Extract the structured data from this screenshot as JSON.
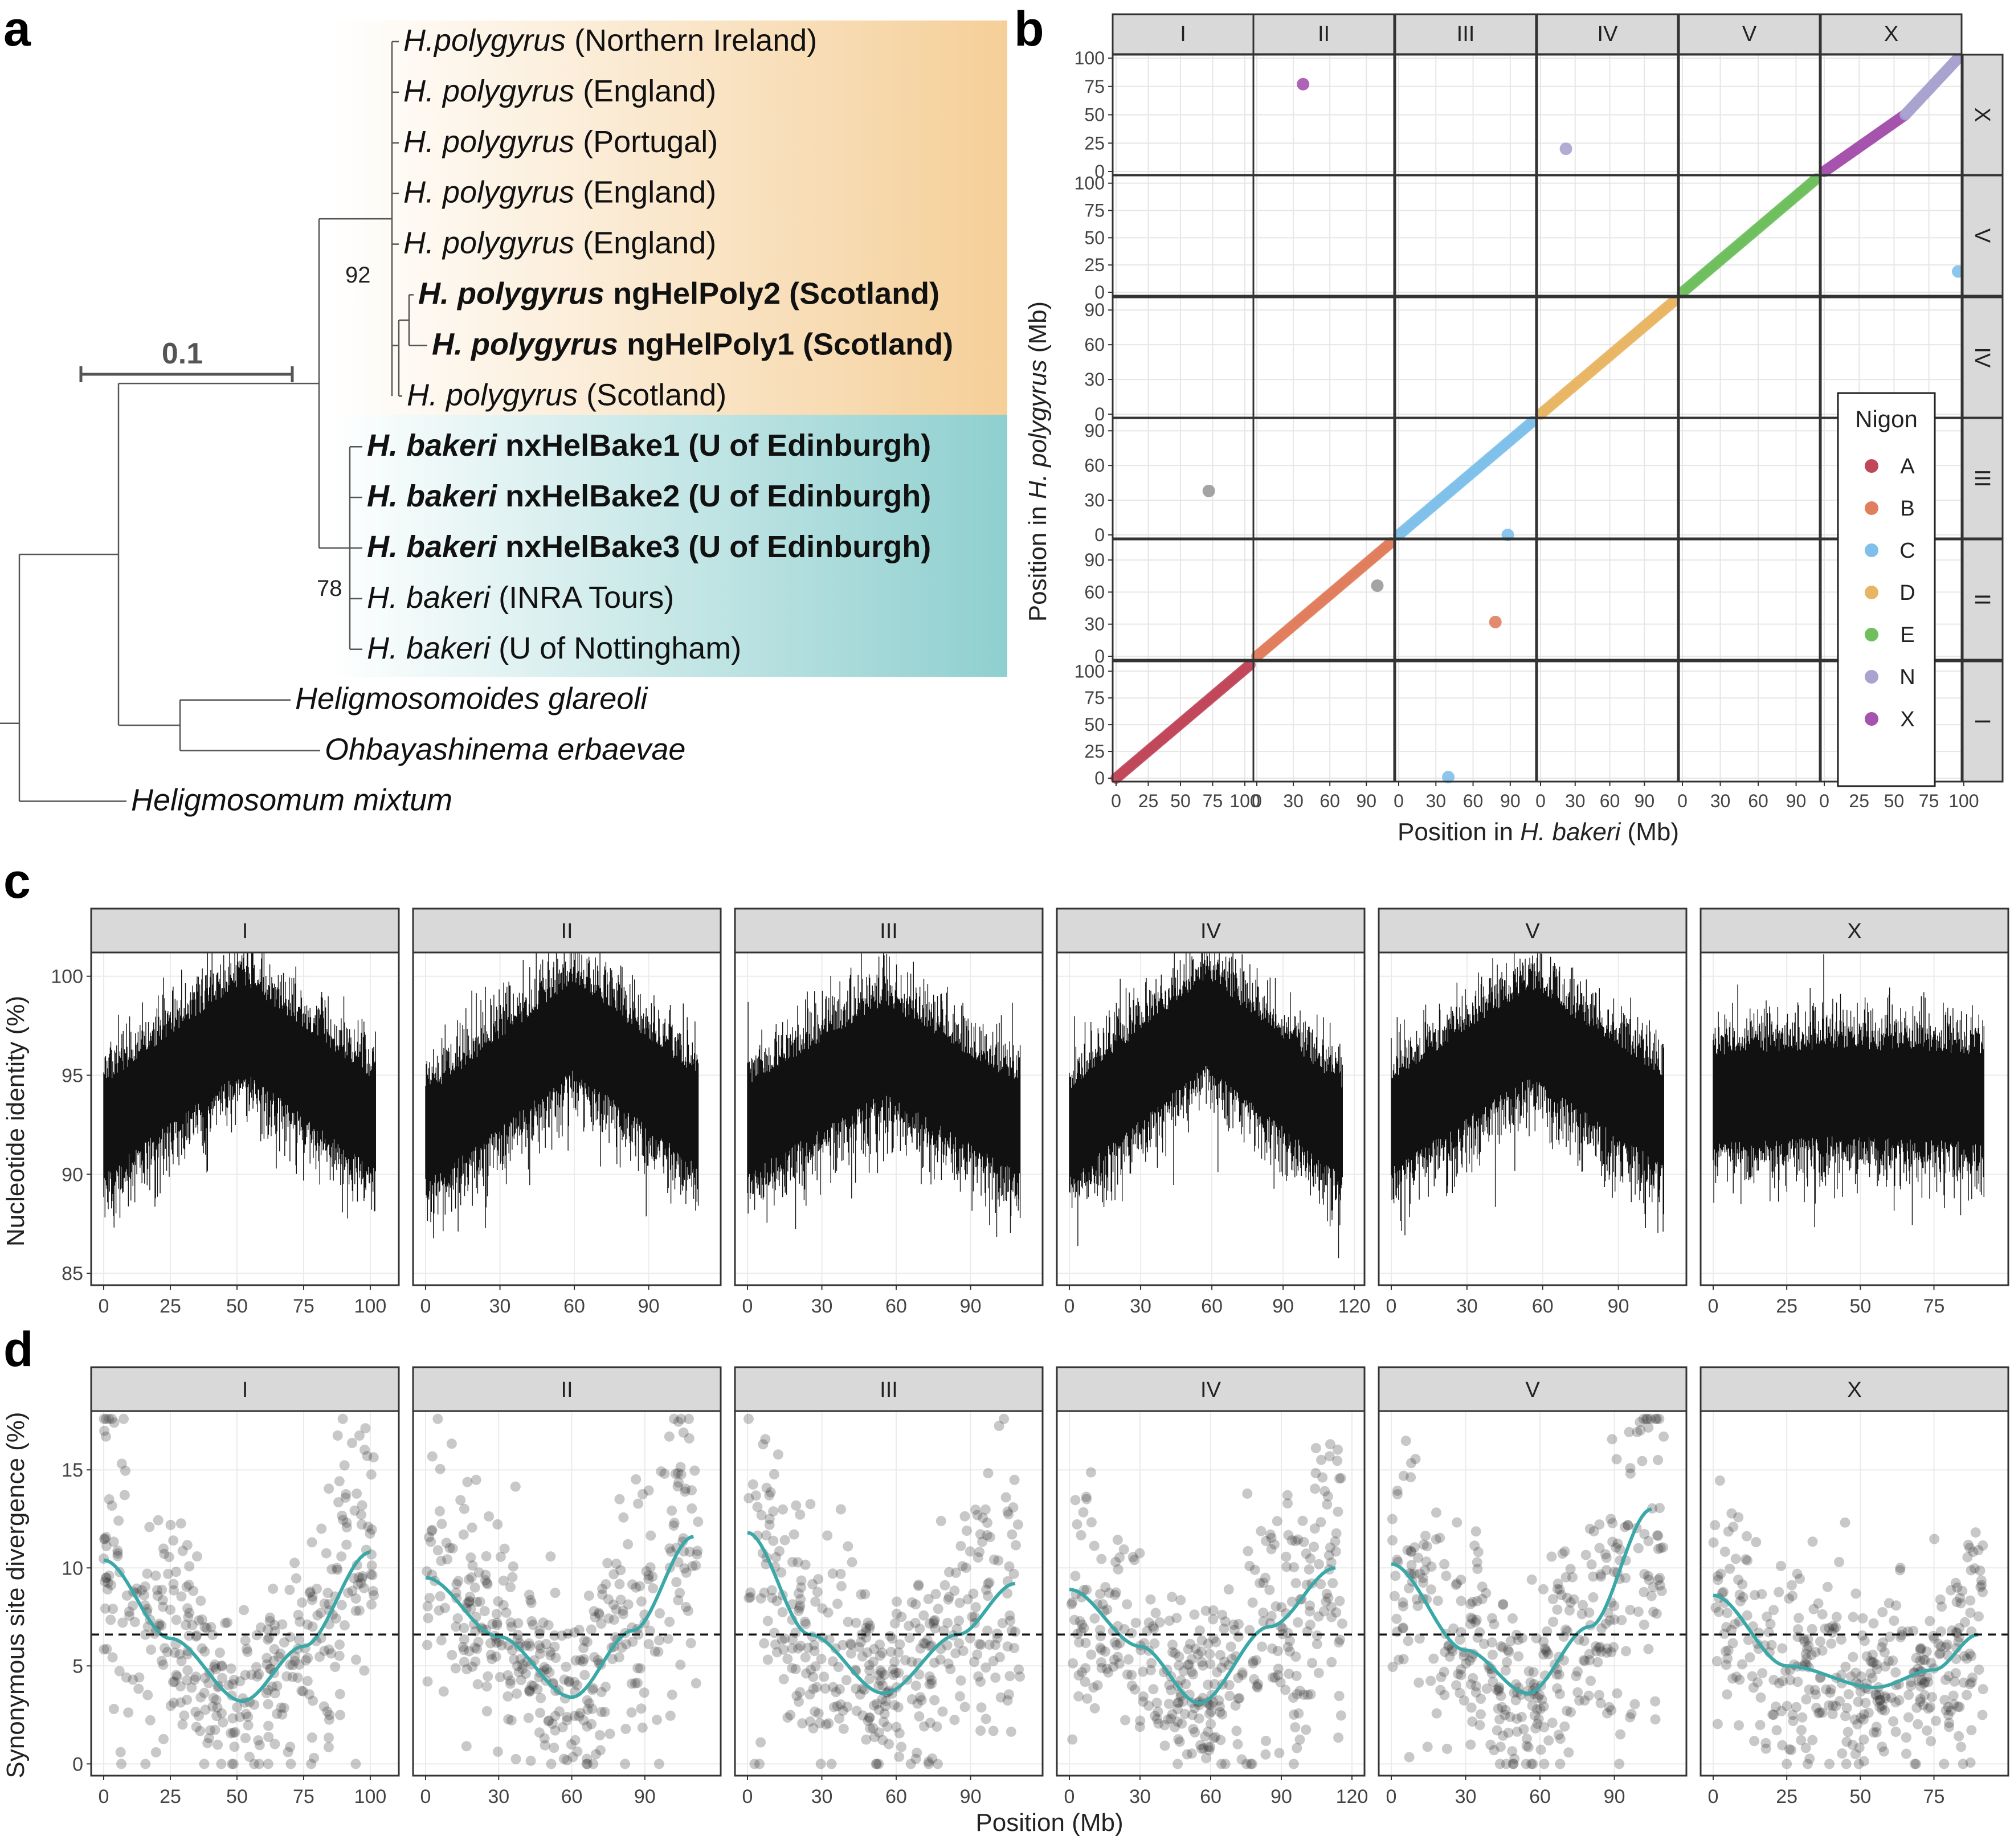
{
  "panels": {
    "a": "a",
    "b": "b",
    "c": "c",
    "d": "d"
  },
  "tree": {
    "scale_label": "0.1",
    "bootstrap": [
      "92",
      "78"
    ],
    "leaves": [
      {
        "species": "H.polygyrus",
        "rest": " (Northern Ireland)",
        "bold": false
      },
      {
        "species": "H. polygyrus",
        "rest": " (England)",
        "bold": false
      },
      {
        "species": "H. polygyrus",
        "rest": " (Portugal)",
        "bold": false
      },
      {
        "species": "H. polygyrus",
        "rest": " (England)",
        "bold": false
      },
      {
        "species": "H. polygyrus",
        "rest": " (England)",
        "bold": false
      },
      {
        "species": "H. polygyrus",
        "rest": " ngHelPoly2 (Scotland)",
        "bold": true
      },
      {
        "species": "H. polygyrus",
        "rest": " ngHelPoly1 (Scotland)",
        "bold": true
      },
      {
        "species": "H. polygyrus",
        "rest": " (Scotland)",
        "bold": false
      },
      {
        "species": "H. bakeri",
        "rest": " nxHelBake1 (U of Edinburgh)",
        "bold": true
      },
      {
        "species": "H. bakeri",
        "rest": " nxHelBake2 (U of Edinburgh)",
        "bold": true
      },
      {
        "species": "H. bakeri",
        "rest": " nxHelBake3 (U of Edinburgh)",
        "bold": true
      },
      {
        "species": "H. bakeri",
        "rest": " (INRA Tours)",
        "bold": false
      },
      {
        "species": "H. bakeri",
        "rest": " (U of Nottingham)",
        "bold": false
      },
      {
        "species": "Heligmosomoides glareoli",
        "rest": "",
        "bold": false
      },
      {
        "species": "Ohbayashinema erbaevae",
        "rest": "",
        "bold": false
      },
      {
        "species": "Heligmosomum mixtum",
        "rest": "",
        "bold": false
      }
    ],
    "colors": {
      "polygyrus_band": "#f5cf98",
      "bakeri_band": "#8fcfcf"
    }
  },
  "chart_data": [
    {
      "type": "scatter",
      "panel": "b",
      "xlabel_prefix": "Position in ",
      "xlabel_species": "H. bakeri",
      "xlabel_suffix": " (Mb)",
      "ylabel_prefix": "Position in ",
      "ylabel_species": "H. polygyrus",
      "ylabel_suffix": " (Mb)",
      "col_facets": [
        "I",
        "II",
        "III",
        "IV",
        "V",
        "X"
      ],
      "row_facets": [
        "X",
        "V",
        "IV",
        "III",
        "II",
        "I"
      ],
      "col_ranges": [
        [
          0,
          104
        ],
        [
          0,
          110
        ],
        [
          0,
          108
        ],
        [
          0,
          116
        ],
        [
          0,
          106
        ],
        [
          0,
          96
        ]
      ],
      "row_ranges": [
        [
          0,
          100
        ],
        [
          0,
          104
        ],
        [
          0,
          98
        ],
        [
          0,
          98
        ],
        [
          0,
          106
        ],
        [
          0,
          106
        ]
      ],
      "x_ticks": [
        [
          "0",
          "25",
          "50",
          "75",
          "100"
        ],
        [
          "0",
          "30",
          "60",
          "90"
        ],
        [
          "0",
          "30",
          "60",
          "90"
        ],
        [
          "0",
          "30",
          "60",
          "90"
        ],
        [
          "0",
          "30",
          "60",
          "90"
        ],
        [
          "0",
          "25",
          "50",
          "75",
          "100"
        ]
      ],
      "x_tick_values": [
        [
          0,
          25,
          50,
          75,
          100
        ],
        [
          0,
          30,
          60,
          90
        ],
        [
          0,
          30,
          60,
          90
        ],
        [
          0,
          30,
          60,
          90
        ],
        [
          0,
          30,
          60,
          90
        ],
        [
          0,
          25,
          50,
          75,
          100
        ]
      ],
      "y_ticks": [
        [
          "0",
          "25",
          "50",
          "75",
          "100"
        ],
        [
          "0",
          "25",
          "50",
          "75",
          "100"
        ],
        [
          "0",
          "30",
          "60",
          "90"
        ],
        [
          "0",
          "30",
          "60",
          "90"
        ],
        [
          "0",
          "30",
          "60",
          "90"
        ],
        [
          "0",
          "25",
          "50",
          "75",
          "100"
        ]
      ],
      "y_tick_values": [
        [
          0,
          25,
          50,
          75,
          100
        ],
        [
          0,
          25,
          50,
          75,
          100
        ],
        [
          0,
          30,
          60,
          90
        ],
        [
          0,
          30,
          60,
          90
        ],
        [
          0,
          30,
          60,
          90
        ],
        [
          0,
          25,
          50,
          75,
          100
        ]
      ],
      "legend": {
        "title": "Nigon",
        "position": "right, inside",
        "items": [
          {
            "label": "A",
            "color": "#c0475a"
          },
          {
            "label": "B",
            "color": "#e07e5e"
          },
          {
            "label": "C",
            "color": "#7fc0ea"
          },
          {
            "label": "D",
            "color": "#e8b565"
          },
          {
            "label": "E",
            "color": "#6fbf5f"
          },
          {
            "label": "N",
            "color": "#a8a3cf"
          },
          {
            "label": "X",
            "color": "#a553ad"
          }
        ]
      },
      "diagonal_segments": [
        {
          "col": 0,
          "row": 5,
          "nigon": "A",
          "x": [
            0,
            104
          ],
          "y": [
            0,
            106
          ]
        },
        {
          "col": 1,
          "row": 4,
          "nigon": "B",
          "x": [
            0,
            110
          ],
          "y": [
            0,
            106
          ]
        },
        {
          "col": 2,
          "row": 3,
          "nigon": "C",
          "x": [
            0,
            108
          ],
          "y": [
            0,
            98
          ]
        },
        {
          "col": 3,
          "row": 2,
          "nigon": "D",
          "x": [
            0,
            116
          ],
          "y": [
            0,
            98
          ]
        },
        {
          "col": 4,
          "row": 1,
          "nigon": "E",
          "x": [
            0,
            106
          ],
          "y": [
            0,
            104
          ]
        },
        {
          "col": 5,
          "row": 0,
          "nigon": "X",
          "x": [
            0,
            58
          ],
          "y": [
            0,
            50
          ]
        },
        {
          "col": 5,
          "row": 0,
          "nigon": "N",
          "x": [
            58,
            96
          ],
          "y": [
            50,
            100
          ]
        }
      ],
      "outliers": [
        {
          "col": 1,
          "row": 0,
          "x": 38,
          "y": 77,
          "nigon": "X"
        },
        {
          "col": 3,
          "row": 0,
          "x": 22,
          "y": 20,
          "nigon": "N"
        },
        {
          "col": 5,
          "row": 1,
          "x": 96,
          "y": 19,
          "nigon": "C"
        },
        {
          "col": 2,
          "row": 3,
          "x": 88,
          "y": 0,
          "nigon": "C"
        },
        {
          "col": 0,
          "row": 3,
          "x": 72,
          "y": 38,
          "grey": true
        },
        {
          "col": 1,
          "row": 4,
          "x": 99,
          "y": 66,
          "grey": true
        },
        {
          "col": 2,
          "row": 4,
          "x": 78,
          "y": 32,
          "nigon": "B"
        },
        {
          "col": 2,
          "row": 5,
          "x": 40,
          "y": 1,
          "nigon": "C"
        }
      ]
    },
    {
      "type": "line",
      "panel": "c",
      "ylabel": "Nucleotide identity (%)",
      "ylim": [
        84.4,
        101.2
      ],
      "y_ticks": [
        "85",
        "90",
        "95",
        "100"
      ],
      "y_tick_values": [
        85,
        90,
        95,
        100
      ],
      "facets": [
        {
          "label": "I",
          "xmax": 102,
          "x_ticks": [
            "0",
            "25",
            "50",
            "75",
            "100"
          ],
          "x_tick_values": [
            0,
            25,
            50,
            75,
            100
          ],
          "peak_x": 52,
          "base": 92.6,
          "peak": 97.0
        },
        {
          "label": "II",
          "xmax": 110,
          "x_ticks": [
            "0",
            "30",
            "60",
            "90"
          ],
          "x_tick_values": [
            0,
            30,
            60,
            90
          ],
          "peak_x": 60,
          "base": 92.4,
          "peak": 97.0
        },
        {
          "label": "III",
          "xmax": 110,
          "x_ticks": [
            "0",
            "30",
            "60",
            "90"
          ],
          "x_tick_values": [
            0,
            30,
            60,
            90
          ],
          "peak_x": 55,
          "base": 92.5,
          "peak": 96.0
        },
        {
          "label": "IV",
          "xmax": 115,
          "x_ticks": [
            "0",
            "30",
            "60",
            "90",
            "120"
          ],
          "x_tick_values": [
            0,
            30,
            60,
            90,
            120
          ],
          "peak_x": 58,
          "base": 92.3,
          "peak": 97.2
        },
        {
          "label": "V",
          "xmax": 108,
          "x_ticks": [
            "0",
            "30",
            "60",
            "90"
          ],
          "x_tick_values": [
            0,
            30,
            60,
            90
          ],
          "peak_x": 55,
          "base": 92.8,
          "peak": 96.8
        },
        {
          "label": "X",
          "xmax": 92,
          "x_ticks": [
            "0",
            "25",
            "50",
            "75"
          ],
          "x_tick_values": [
            0,
            25,
            50,
            75
          ],
          "peak_x": 45,
          "base": 94.0,
          "peak": 94.3
        }
      ]
    },
    {
      "type": "scatter",
      "panel": "d",
      "ylabel": "Synonymous site divergence (%)",
      "xlabel": "Position (Mb)",
      "ylim": [
        -0.6,
        18
      ],
      "y_ticks": [
        "0",
        "5",
        "10",
        "15"
      ],
      "y_tick_values": [
        0,
        5,
        10,
        15
      ],
      "genome_mean": 6.6,
      "smooth_color": "#3ba8a8",
      "facets": [
        {
          "label": "I",
          "xmax": 102,
          "x_ticks": [
            "0",
            "25",
            "50",
            "75",
            "100"
          ],
          "x_tick_values": [
            0,
            25,
            50,
            75,
            100
          ],
          "smooth": [
            [
              0,
              10.4
            ],
            [
              25,
              6.4
            ],
            [
              52,
              3.2
            ],
            [
              75,
              6.0
            ],
            [
              100,
              10.8
            ]
          ]
        },
        {
          "label": "II",
          "xmax": 112,
          "x_ticks": [
            "0",
            "30",
            "60",
            "90"
          ],
          "x_tick_values": [
            0,
            30,
            60,
            90
          ],
          "smooth": [
            [
              0,
              9.5
            ],
            [
              30,
              6.5
            ],
            [
              60,
              3.4
            ],
            [
              85,
              6.8
            ],
            [
              110,
              11.6
            ]
          ]
        },
        {
          "label": "III",
          "xmax": 110,
          "x_ticks": [
            "0",
            "30",
            "60",
            "90"
          ],
          "x_tick_values": [
            0,
            30,
            60,
            90
          ],
          "smooth": [
            [
              0,
              11.8
            ],
            [
              25,
              6.6
            ],
            [
              55,
              3.6
            ],
            [
              85,
              6.6
            ],
            [
              108,
              9.2
            ]
          ]
        },
        {
          "label": "IV",
          "xmax": 116,
          "x_ticks": [
            "0",
            "30",
            "60",
            "90",
            "120"
          ],
          "x_tick_values": [
            0,
            30,
            60,
            90,
            120
          ],
          "smooth": [
            [
              0,
              8.9
            ],
            [
              30,
              6.0
            ],
            [
              55,
              3.1
            ],
            [
              85,
              7.0
            ],
            [
              113,
              10.0
            ]
          ]
        },
        {
          "label": "V",
          "xmax": 110,
          "x_ticks": [
            "0",
            "30",
            "60",
            "90"
          ],
          "x_tick_values": [
            0,
            30,
            60,
            90
          ],
          "smooth": [
            [
              0,
              10.2
            ],
            [
              30,
              5.8
            ],
            [
              55,
              3.6
            ],
            [
              80,
              7.0
            ],
            [
              105,
              13.0
            ]
          ]
        },
        {
          "label": "X",
          "xmax": 92,
          "x_ticks": [
            "0",
            "25",
            "50",
            "75"
          ],
          "x_tick_values": [
            0,
            25,
            50,
            75
          ],
          "smooth": [
            [
              0,
              8.6
            ],
            [
              25,
              5.0
            ],
            [
              55,
              3.9
            ],
            [
              75,
              4.8
            ],
            [
              90,
              6.6
            ]
          ]
        }
      ]
    }
  ]
}
